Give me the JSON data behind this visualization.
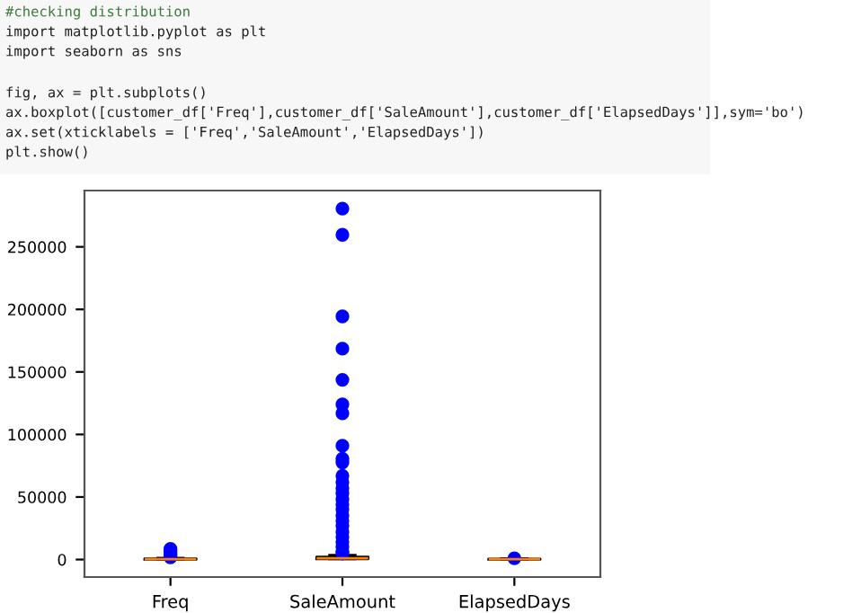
{
  "chart_data": {
    "type": "box",
    "categories": [
      "Freq",
      "SaleAmount",
      "ElapsedDays"
    ],
    "boxes": [
      {
        "q1": 100,
        "median": 300,
        "q3": 600,
        "high": 1200,
        "outliers": [
          1800,
          2500,
          3500,
          4500,
          5500,
          6500,
          7500,
          8500
        ]
      },
      {
        "q1": 500,
        "median": 1000,
        "q3": 2000,
        "high": 3500,
        "outliers": [
          5000,
          6500,
          10000,
          14000,
          18000,
          22000,
          27000,
          31000,
          35000,
          40000,
          44000,
          48000,
          53000,
          57000,
          61800,
          67000,
          77600,
          80500,
          91000,
          116900,
          124000,
          143700,
          168600,
          194400,
          259600,
          280600
        ]
      },
      {
        "q1": 100,
        "median": 300,
        "q3": 500,
        "high": 800,
        "outliers": [
          1000
        ]
      }
    ],
    "ylim": [
      -14000,
      295000
    ],
    "yticks": [
      0,
      50000,
      100000,
      150000,
      200000,
      250000
    ],
    "marker": "circle",
    "grid": false,
    "annotations": [
      "#checking distribution",
      "import matplotlib.pyplot as plt",
      "import seaborn as sns",
      "fig, ax = plt.subplots()",
      "ax.boxplot([customer_df['Freq'],customer_df['SaleAmount'],customer_df['ElapsedDays']],sym='bo')",
      "ax.set(xticklabels = ['Freq','SaleAmount','ElapsedDays'])",
      "plt.show()"
    ]
  }
}
